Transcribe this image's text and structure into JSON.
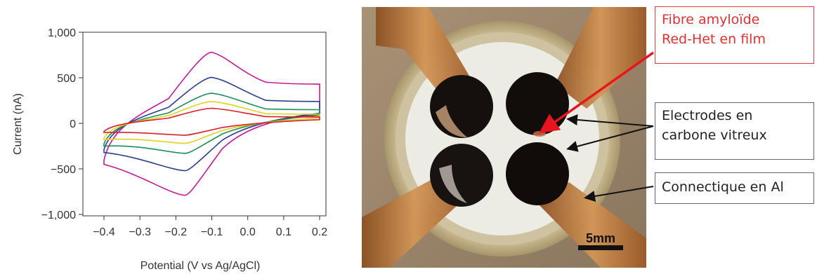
{
  "chart_data": {
    "type": "line",
    "xlabel": "Potential (V vs Ag/AgCl)",
    "ylabel": "Current (nA)",
    "xlim": [
      -0.4,
      0.2
    ],
    "ylim": [
      -1000,
      1000
    ],
    "xticks": [
      "−0.4",
      "−0.3",
      "−0.2",
      "−0.1",
      "0.0",
      "0.1",
      "0.2"
    ],
    "xtick_values": [
      -0.4,
      -0.3,
      -0.2,
      -0.1,
      0.0,
      0.1,
      0.2
    ],
    "yticks": [
      "−1,000",
      "−500",
      "0",
      "500",
      "1,000"
    ],
    "ytick_values": [
      -1000,
      -500,
      0,
      500,
      1000
    ],
    "grid": false,
    "series": [
      {
        "color": "#c8189c",
        "peak_anodic": 780,
        "peak_cathodic": -790,
        "start": -450,
        "end_top": 430,
        "end_bottom": 100
      },
      {
        "color": "#2a3f8f",
        "peak_anodic": 505,
        "peak_cathodic": -520,
        "start": -320,
        "end_top": 240,
        "end_bottom": 110
      },
      {
        "color": "#1e8f5a",
        "peak_anodic": 330,
        "peak_cathodic": -330,
        "start": -250,
        "end_top": 150,
        "end_bottom": 90
      },
      {
        "color": "#e8d020",
        "peak_anodic": 240,
        "peak_cathodic": -220,
        "start": -180,
        "end_top": 100,
        "end_bottom": 60
      },
      {
        "color": "#d81e28",
        "peak_anodic": 165,
        "peak_cathodic": -130,
        "start": -100,
        "end_top": 70,
        "end_bottom": 40
      }
    ]
  },
  "photo": {
    "scale_bar_label": "5mm"
  },
  "callouts": {
    "fibre": [
      "Fibre amyloïde",
      "Red-Het en film"
    ],
    "electrodes": [
      "Electrodes en",
      "carbone vitreux"
    ],
    "connect": [
      "Connectique en Al"
    ]
  },
  "colors": {
    "fibre_callout": "#e53030",
    "arrow_red": "#e8141e",
    "arrow_black": "#111111",
    "copper": "#b8763a"
  }
}
